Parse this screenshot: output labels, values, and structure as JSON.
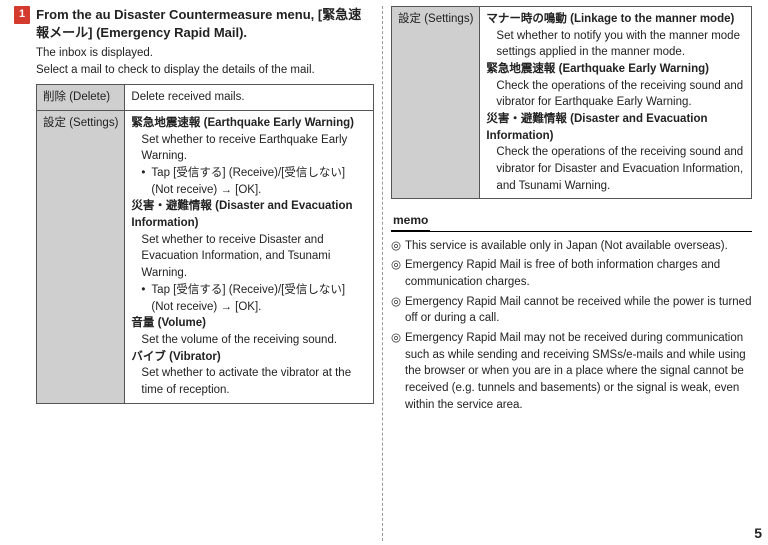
{
  "step": {
    "badge": "1",
    "title": "From the au Disaster Countermeasure menu, [緊急速報メール] (Emergency Rapid Mail).",
    "body1": "The inbox is displayed.",
    "body2": "Select a mail to check to display the details of the mail."
  },
  "table_left": {
    "delete_label": "削除 (Delete)",
    "delete_desc": "Delete received mails.",
    "settings_label": "設定 (Settings)",
    "sec1_head": "緊急地震速報 (Earthquake Early Warning)",
    "sec1_desc": "Set whether to receive Earthquake Early Warning.",
    "sec1_bullet": "Tap [受信する] (Receive)/[受信しない] (Not receive) → [OK].",
    "sec2_head": "災害・避難情報 (Disaster and Evacuation Information)",
    "sec2_desc": "Set whether to receive Disaster and Evacuation Information, and Tsunami Warning.",
    "sec2_bullet": "Tap [受信する] (Receive)/[受信しない] (Not receive) → [OK].",
    "sec3_head": "音量 (Volume)",
    "sec3_desc": "Set the volume of the receiving sound.",
    "sec4_head": "バイブ (Vibrator)",
    "sec4_desc": "Set whether to activate the vibrator at the time of reception."
  },
  "table_right": {
    "settings_label": "設定 (Settings)",
    "sec1_head": "マナー時の鳴動 (Linkage to the manner mode)",
    "sec1_desc": "Set whether to notify you with the manner mode settings applied in the manner mode.",
    "sec2_head": "緊急地震速報 (Earthquake Early Warning)",
    "sec2_desc": "Check the operations of the receiving sound and vibrator for Earthquake Early Warning.",
    "sec3_head": "災害・避難情報 (Disaster and Evacuation Information)",
    "sec3_desc": "Check the operations of the receiving sound and vibrator for Disaster and Evacuation Information, and Tsunami Warning."
  },
  "memo": {
    "heading": "memo",
    "items": [
      "This service is available only in Japan (Not available overseas).",
      "Emergency Rapid Mail is free of both information charges and communication charges.",
      "Emergency Rapid Mail cannot be received while the power is turned off or during a call.",
      "Emergency Rapid Mail may not be received during communication such as while sending and receiving SMSs/e-mails and while using the browser or when you are in a place where the signal cannot be received (e.g. tunnels and basements) or the signal is weak, even within the service area."
    ]
  },
  "page_number": "5"
}
